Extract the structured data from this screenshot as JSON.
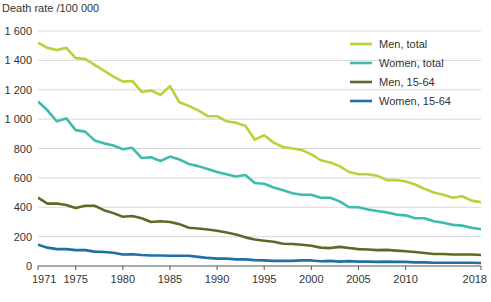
{
  "chart_data": {
    "type": "line",
    "y_label": "Death rate /100 000",
    "x": [
      1971,
      1972,
      1973,
      1974,
      1975,
      1976,
      1977,
      1978,
      1979,
      1980,
      1981,
      1982,
      1983,
      1984,
      1985,
      1986,
      1987,
      1988,
      1989,
      1990,
      1991,
      1992,
      1993,
      1994,
      1995,
      1996,
      1997,
      1998,
      1999,
      2000,
      2001,
      2002,
      2003,
      2004,
      2005,
      2006,
      2007,
      2008,
      2009,
      2010,
      2011,
      2012,
      2013,
      2014,
      2015,
      2016,
      2017,
      2018
    ],
    "series": [
      {
        "name": "Men, total",
        "color": "#b9d23a",
        "values": [
          1520,
          1485,
          1470,
          1485,
          1415,
          1410,
          1370,
          1330,
          1290,
          1255,
          1260,
          1185,
          1195,
          1165,
          1225,
          1115,
          1090,
          1060,
          1020,
          1020,
          985,
          975,
          955,
          860,
          890,
          840,
          810,
          800,
          790,
          760,
          720,
          705,
          680,
          640,
          625,
          625,
          615,
          585,
          585,
          575,
          555,
          525,
          500,
          485,
          465,
          475,
          445,
          435
        ]
      },
      {
        "name": "Women, total",
        "color": "#3dbcae",
        "values": [
          1120,
          1060,
          985,
          1005,
          925,
          915,
          855,
          835,
          820,
          795,
          805,
          735,
          740,
          715,
          745,
          725,
          695,
          680,
          660,
          640,
          625,
          610,
          620,
          565,
          560,
          535,
          515,
          495,
          485,
          485,
          465,
          465,
          440,
          400,
          400,
          385,
          375,
          365,
          350,
          345,
          325,
          325,
          305,
          295,
          280,
          275,
          260,
          250
        ]
      },
      {
        "name": "Men, 15-64",
        "color": "#5b6a26",
        "values": [
          465,
          425,
          425,
          415,
          395,
          410,
          410,
          380,
          360,
          335,
          340,
          325,
          300,
          305,
          300,
          285,
          260,
          255,
          248,
          240,
          228,
          215,
          195,
          180,
          172,
          165,
          152,
          150,
          145,
          138,
          125,
          122,
          130,
          122,
          115,
          112,
          108,
          110,
          105,
          100,
          95,
          88,
          82,
          82,
          78,
          78,
          78,
          75
        ]
      },
      {
        "name": "Women, 15-64",
        "color": "#1f6fa5",
        "values": [
          145,
          125,
          115,
          115,
          108,
          108,
          98,
          95,
          90,
          78,
          80,
          75,
          72,
          72,
          70,
          70,
          70,
          62,
          55,
          50,
          50,
          45,
          45,
          40,
          38,
          35,
          35,
          35,
          38,
          38,
          32,
          35,
          30,
          33,
          30,
          30,
          28,
          30,
          28,
          28,
          25,
          25,
          22,
          22,
          22,
          22,
          22,
          20
        ]
      }
    ],
    "xlim": [
      1971,
      2018
    ],
    "xticks": [
      1971,
      1975,
      1980,
      1985,
      1990,
      1995,
      2000,
      2005,
      2010,
      2018
    ],
    "ylim": [
      0,
      1600
    ],
    "yticks": [
      0,
      200,
      400,
      600,
      800,
      {
        "value": 1000,
        "label": "1 000"
      },
      {
        "value": 1200,
        "label": "1 200"
      },
      {
        "value": 1400,
        "label": "1 400"
      },
      {
        "value": 1600,
        "label": "1 600"
      }
    ],
    "grid": true,
    "legend": "upper right"
  }
}
